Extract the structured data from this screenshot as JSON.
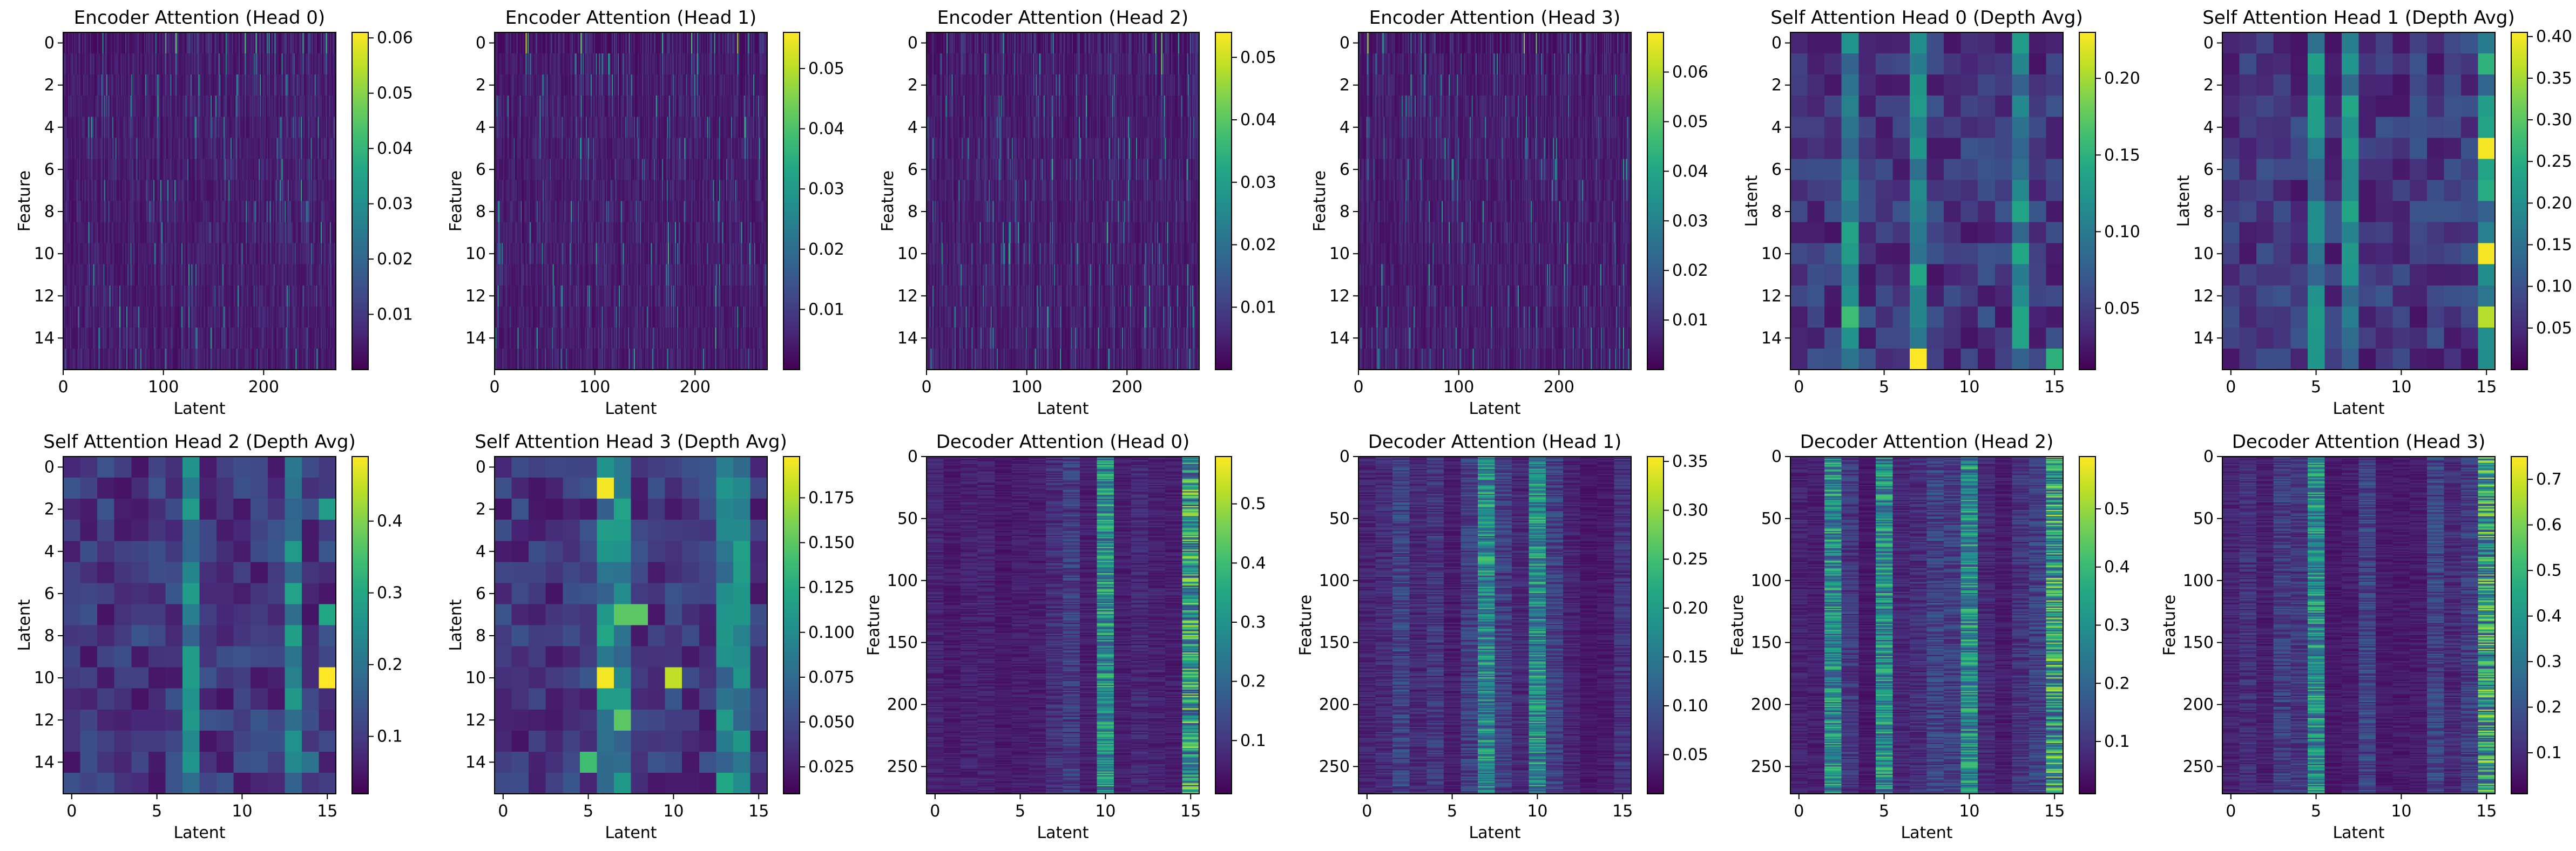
{
  "chart_data": [
    {
      "type": "heatmap",
      "title": "Encoder Attention (Head 0)",
      "xlabel": "Latent",
      "ylabel": "Feature",
      "x_ticks": [
        0,
        100,
        200
      ],
      "x_lim": [
        0,
        272
      ],
      "y_ticks": [
        0,
        2,
        4,
        6,
        8,
        10,
        12,
        14
      ],
      "y_lim": [
        0,
        15
      ],
      "colorbar_ticks": [
        "0.01",
        "0.02",
        "0.03",
        "0.04",
        "0.05",
        "0.06"
      ],
      "colorbar_range": [
        0.0,
        0.061
      ],
      "colormap": "viridis",
      "pattern": "encoder",
      "seed": 11
    },
    {
      "type": "heatmap",
      "title": "Encoder Attention (Head 1)",
      "xlabel": "Latent",
      "ylabel": "Feature",
      "x_ticks": [
        0,
        100,
        200
      ],
      "x_lim": [
        0,
        272
      ],
      "y_ticks": [
        0,
        2,
        4,
        6,
        8,
        10,
        12,
        14
      ],
      "y_lim": [
        0,
        15
      ],
      "colorbar_ticks": [
        "0.01",
        "0.02",
        "0.03",
        "0.04",
        "0.05"
      ],
      "colorbar_range": [
        0.0,
        0.056
      ],
      "colormap": "viridis",
      "pattern": "encoder",
      "seed": 23
    },
    {
      "type": "heatmap",
      "title": "Encoder Attention (Head 2)",
      "xlabel": "Latent",
      "ylabel": "Feature",
      "x_ticks": [
        0,
        100,
        200
      ],
      "x_lim": [
        0,
        272
      ],
      "y_ticks": [
        0,
        2,
        4,
        6,
        8,
        10,
        12,
        14
      ],
      "y_lim": [
        0,
        15
      ],
      "colorbar_ticks": [
        "0.01",
        "0.02",
        "0.03",
        "0.04",
        "0.05"
      ],
      "colorbar_range": [
        0.0,
        0.054
      ],
      "colormap": "viridis",
      "pattern": "encoder",
      "seed": 37
    },
    {
      "type": "heatmap",
      "title": "Encoder Attention (Head 3)",
      "xlabel": "Latent",
      "ylabel": "Feature",
      "x_ticks": [
        0,
        100,
        200
      ],
      "x_lim": [
        0,
        272
      ],
      "y_ticks": [
        0,
        2,
        4,
        6,
        8,
        10,
        12,
        14
      ],
      "y_lim": [
        0,
        15
      ],
      "colorbar_ticks": [
        "0.01",
        "0.02",
        "0.03",
        "0.04",
        "0.05",
        "0.06"
      ],
      "colorbar_range": [
        0.0,
        0.068
      ],
      "colormap": "viridis",
      "pattern": "encoder",
      "seed": 41
    },
    {
      "type": "heatmap",
      "title": "Self Attention Head 0 (Depth Avg)",
      "xlabel": "",
      "ylabel": "Latent",
      "x_ticks": [
        0,
        5,
        10,
        15
      ],
      "x_lim": [
        0,
        15
      ],
      "y_ticks": [
        0,
        2,
        4,
        6,
        8,
        10,
        12,
        14
      ],
      "y_lim": [
        0,
        15
      ],
      "colorbar_ticks": [
        "0.05",
        "0.10",
        "0.15",
        "0.20"
      ],
      "colorbar_range": [
        0.01,
        0.23
      ],
      "colormap": "viridis",
      "pattern": "self",
      "seed": 53,
      "hot_columns": [
        3,
        7,
        13
      ],
      "peaks": [
        [
          15,
          7,
          0.23
        ],
        [
          15,
          15,
          0.15
        ],
        [
          13,
          3,
          0.16
        ]
      ]
    },
    {
      "type": "heatmap",
      "title": "Self Attention Head 1 (Depth Avg)",
      "xlabel": "Latent",
      "ylabel": "Latent",
      "x_ticks": [
        0,
        5,
        10,
        15
      ],
      "x_lim": [
        0,
        15
      ],
      "y_ticks": [
        0,
        2,
        4,
        6,
        8,
        10,
        12,
        14
      ],
      "y_lim": [
        0,
        15
      ],
      "colorbar_ticks": [
        "0.05",
        "0.10",
        "0.15",
        "0.20",
        "0.25",
        "0.30",
        "0.35",
        "0.40"
      ],
      "colorbar_range": [
        0.0,
        0.405
      ],
      "colormap": "viridis",
      "pattern": "self",
      "seed": 67,
      "hot_columns": [
        5,
        7,
        15
      ],
      "peaks": [
        [
          5,
          15,
          0.4
        ],
        [
          10,
          15,
          0.4
        ],
        [
          13,
          15,
          0.36
        ],
        [
          1,
          15,
          0.26
        ],
        [
          7,
          15,
          0.25
        ],
        [
          9,
          5,
          0.2
        ],
        [
          14,
          15,
          0.2
        ]
      ]
    },
    {
      "type": "heatmap",
      "title": "Self Attention Head 2 (Depth Avg)",
      "xlabel": "Latent",
      "ylabel": "Latent",
      "x_ticks": [
        0,
        5,
        10,
        15
      ],
      "x_lim": [
        0,
        15
      ],
      "y_ticks": [
        0,
        2,
        4,
        6,
        8,
        10,
        12,
        14
      ],
      "y_lim": [
        0,
        15
      ],
      "colorbar_ticks": [
        "0.1",
        "0.2",
        "0.3",
        "0.4"
      ],
      "colorbar_range": [
        0.02,
        0.49
      ],
      "colormap": "viridis",
      "pattern": "self",
      "seed": 79,
      "hot_columns": [
        7,
        13
      ],
      "peaks": [
        [
          10,
          15,
          0.49
        ],
        [
          7,
          15,
          0.3
        ],
        [
          2,
          15,
          0.28
        ],
        [
          14,
          14,
          0.2
        ]
      ]
    },
    {
      "type": "heatmap",
      "title": "Self Attention Head 3 (Depth Avg)",
      "xlabel": "Latent",
      "ylabel": "Latent",
      "x_ticks": [
        0,
        5,
        10,
        15
      ],
      "x_lim": [
        0,
        15
      ],
      "y_ticks": [
        0,
        2,
        4,
        6,
        8,
        10,
        12,
        14
      ],
      "y_lim": [
        0,
        15
      ],
      "colorbar_ticks": [
        "0.025",
        "0.050",
        "0.075",
        "0.100",
        "0.125",
        "0.150",
        "0.175"
      ],
      "colorbar_range": [
        0.01,
        0.198
      ],
      "colormap": "viridis",
      "pattern": "self",
      "seed": 83,
      "hot_columns": [
        6,
        7,
        13,
        14
      ],
      "peaks": [
        [
          1,
          6,
          0.195
        ],
        [
          10,
          6,
          0.195
        ],
        [
          10,
          10,
          0.18
        ],
        [
          7,
          7,
          0.15
        ],
        [
          7,
          8,
          0.15
        ],
        [
          12,
          7,
          0.15
        ],
        [
          14,
          5,
          0.14
        ]
      ]
    },
    {
      "type": "heatmap",
      "title": "Decoder Attention (Head 0)",
      "xlabel": "Latent",
      "ylabel": "Feature",
      "x_ticks": [
        0,
        5,
        10,
        15
      ],
      "x_lim": [
        0,
        15
      ],
      "y_ticks": [
        0,
        50,
        100,
        150,
        200,
        250
      ],
      "y_lim": [
        0,
        272
      ],
      "colorbar_ticks": [
        "0.1",
        "0.2",
        "0.3",
        "0.4",
        "0.5"
      ],
      "colorbar_range": [
        0.01,
        0.58
      ],
      "colormap": "viridis",
      "pattern": "decoder",
      "seed": 97,
      "hot_columns": [
        10,
        15
      ],
      "base": 0.06
    },
    {
      "type": "heatmap",
      "title": "Decoder Attention (Head 1)",
      "xlabel": "Latent",
      "ylabel": "Feature",
      "x_ticks": [
        0,
        5,
        10,
        15
      ],
      "x_lim": [
        0,
        15
      ],
      "y_ticks": [
        0,
        50,
        100,
        150,
        200,
        250
      ],
      "y_lim": [
        0,
        272
      ],
      "colorbar_ticks": [
        "0.05",
        "0.10",
        "0.15",
        "0.20",
        "0.25",
        "0.30",
        "0.35"
      ],
      "colorbar_range": [
        0.01,
        0.355
      ],
      "colormap": "viridis",
      "pattern": "decoder",
      "seed": 101,
      "hot_columns": [
        7,
        10
      ],
      "base": 0.06
    },
    {
      "type": "heatmap",
      "title": "Decoder Attention (Head 2)",
      "xlabel": "Latent",
      "ylabel": "Feature",
      "x_ticks": [
        0,
        5,
        10,
        15
      ],
      "x_lim": [
        0,
        15
      ],
      "y_ticks": [
        0,
        50,
        100,
        150,
        200,
        250
      ],
      "y_lim": [
        0,
        272
      ],
      "colorbar_ticks": [
        "0.1",
        "0.2",
        "0.3",
        "0.4",
        "0.5"
      ],
      "colorbar_range": [
        0.01,
        0.59
      ],
      "colormap": "viridis",
      "pattern": "decoder",
      "seed": 109,
      "hot_columns": [
        2,
        5,
        10,
        15
      ],
      "base": 0.06
    },
    {
      "type": "heatmap",
      "title": "Decoder Attention (Head 3)",
      "xlabel": "Latent",
      "ylabel": "Feature",
      "x_ticks": [
        0,
        5,
        10,
        15
      ],
      "x_lim": [
        0,
        15
      ],
      "y_ticks": [
        0,
        50,
        100,
        150,
        200,
        250
      ],
      "y_lim": [
        0,
        272
      ],
      "colorbar_ticks": [
        "0.1",
        "0.2",
        "0.3",
        "0.4",
        "0.5",
        "0.6",
        "0.7"
      ],
      "colorbar_range": [
        0.01,
        0.75
      ],
      "colormap": "viridis",
      "pattern": "decoder",
      "seed": 113,
      "hot_columns": [
        5,
        15
      ],
      "base": 0.05
    }
  ]
}
